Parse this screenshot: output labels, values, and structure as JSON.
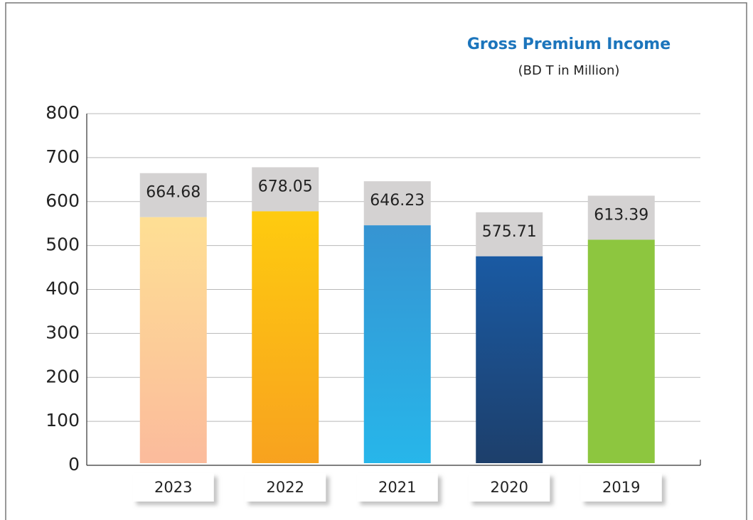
{
  "chart_data": {
    "type": "bar",
    "title": "Gross Premium Income",
    "subtitle": "(BD T in Million)",
    "categories": [
      "2023",
      "2022",
      "2021",
      "2020",
      "2019"
    ],
    "values": [
      664.68,
      678.05,
      646.23,
      575.71,
      613.39
    ],
    "colors": [
      [
        "#fedf94",
        "#fbbb9c"
      ],
      [
        "#fecb0f",
        "#f8a21f"
      ],
      [
        "#3694d2",
        "#27b6ea"
      ],
      [
        "#1a5aa3",
        "#1d3f6b"
      ],
      [
        "#8dc63f",
        "#8dc63f"
      ]
    ],
    "cap_color": "#d4d2d2",
    "ylim": [
      0,
      800
    ],
    "yticks": [
      0,
      100,
      200,
      300,
      400,
      500,
      600,
      700,
      800
    ],
    "grid": true
  }
}
